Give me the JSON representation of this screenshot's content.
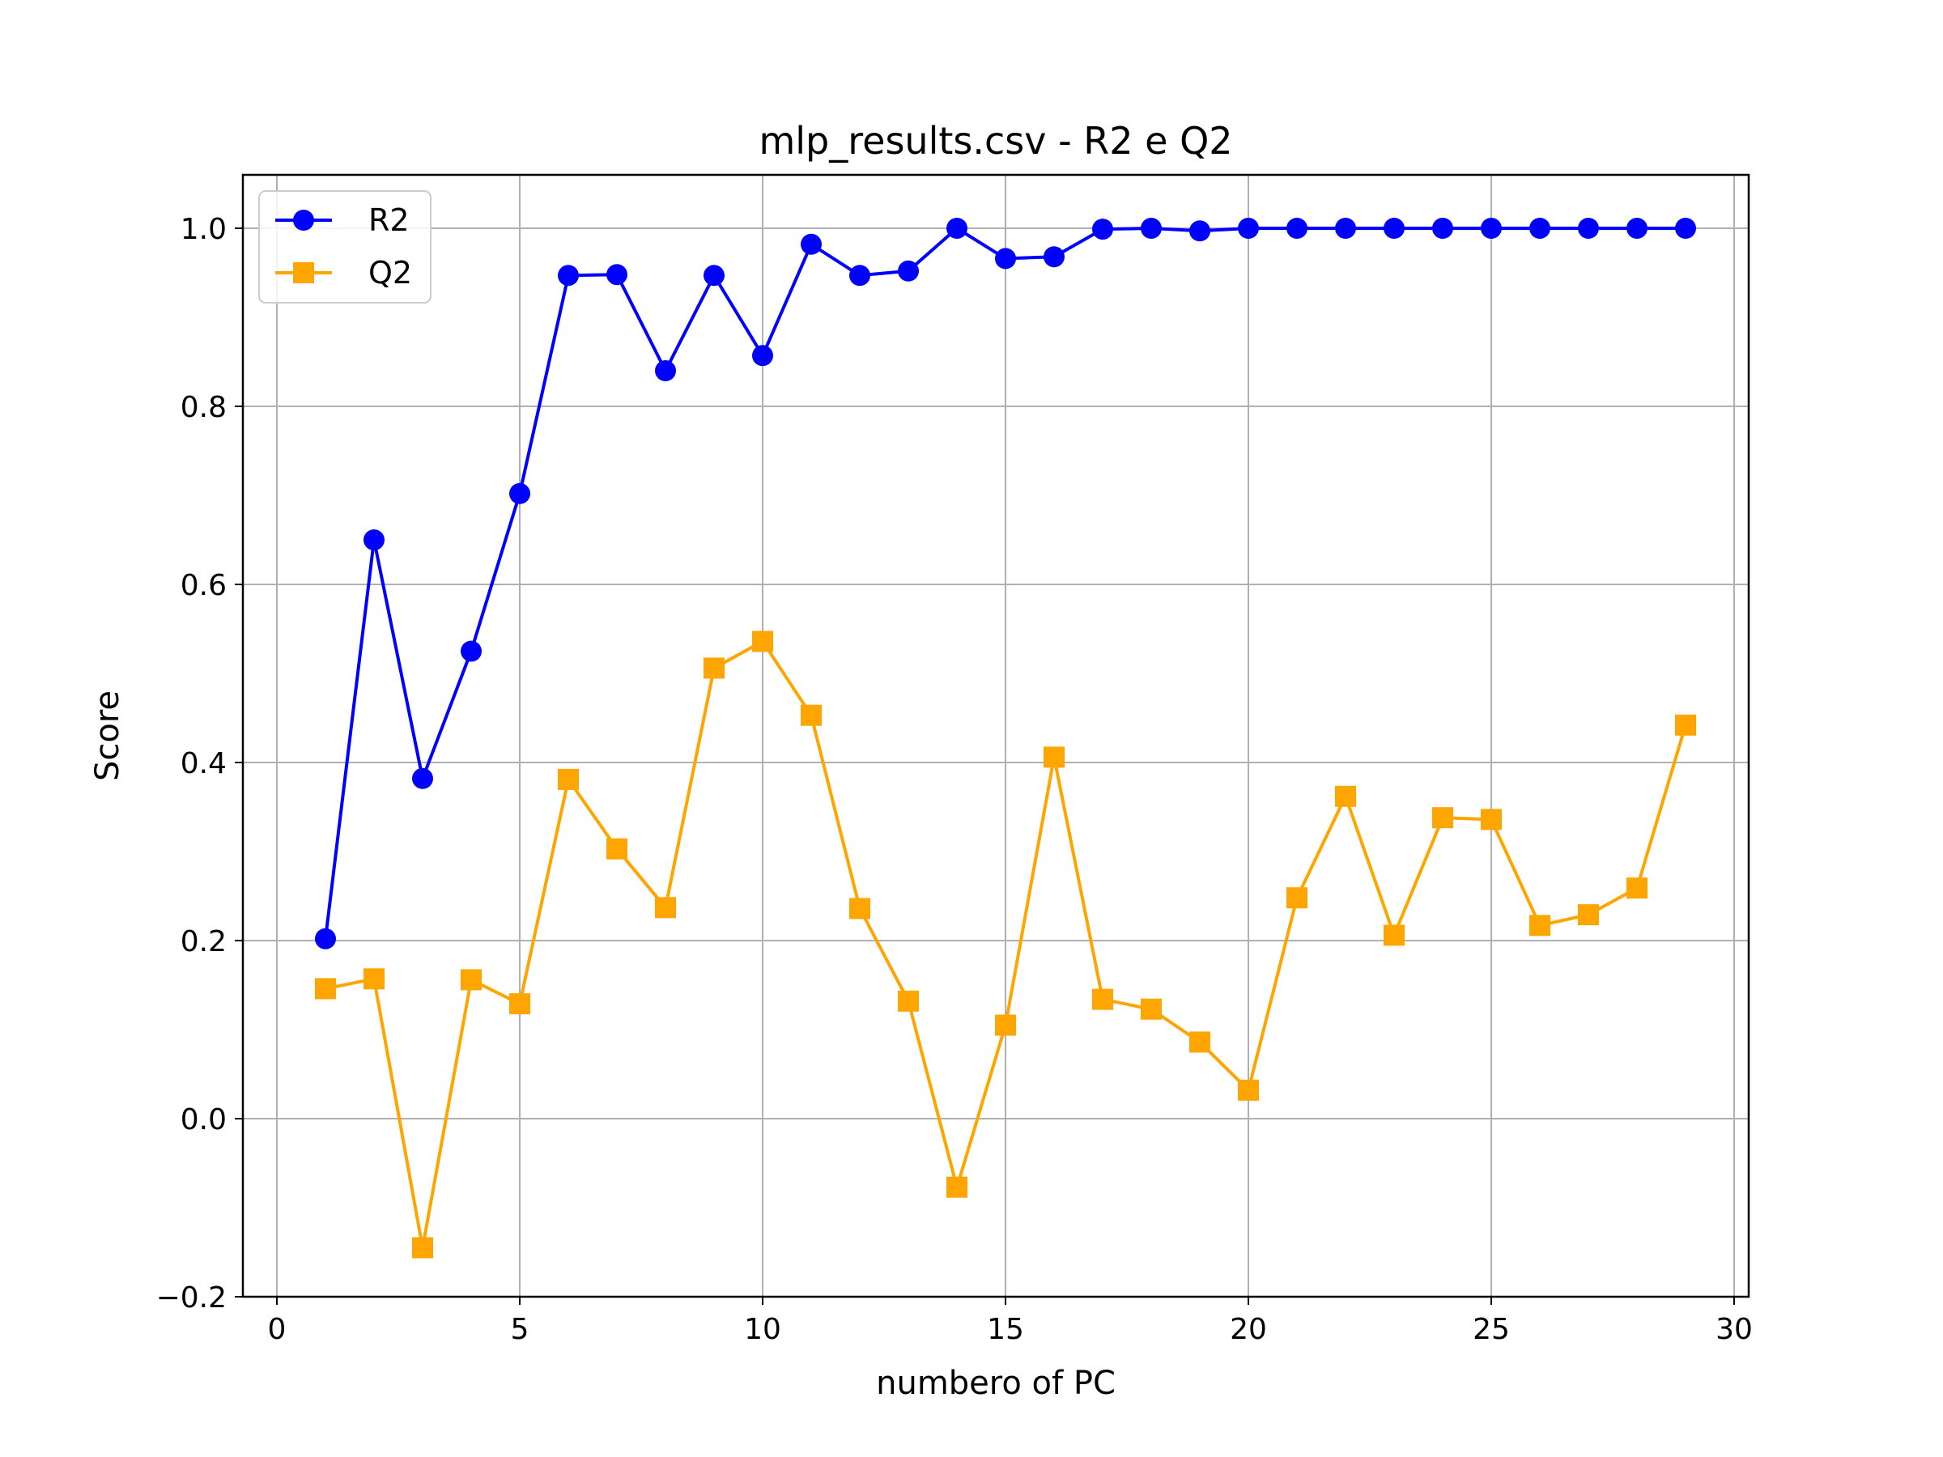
{
  "chart_data": {
    "type": "line",
    "title": "mlp_results.csv - R2 e Q2",
    "xlabel": "numbero of PC",
    "ylabel": "Score",
    "xlim": [
      -0.7,
      30.3
    ],
    "ylim": [
      -0.2,
      1.06
    ],
    "xticks": [
      0,
      5,
      10,
      15,
      20,
      25,
      30
    ],
    "yticks": [
      -0.2,
      0.0,
      0.2,
      0.4,
      0.6,
      0.8,
      1.0
    ],
    "xtick_labels": [
      "0",
      "5",
      "10",
      "15",
      "20",
      "25",
      "30"
    ],
    "ytick_labels": [
      "−0.2",
      "0.0",
      "0.2",
      "0.4",
      "0.6",
      "0.8",
      "1.0"
    ],
    "grid": true,
    "legend_position": "top-left",
    "x": [
      1,
      2,
      3,
      4,
      5,
      6,
      7,
      8,
      9,
      10,
      11,
      12,
      13,
      14,
      15,
      16,
      17,
      18,
      19,
      20,
      21,
      22,
      23,
      24,
      25,
      26,
      27,
      28,
      29
    ],
    "series": [
      {
        "name": "R2",
        "color": "#0000ff",
        "marker": "circle",
        "values": [
          0.202,
          0.65,
          0.382,
          0.525,
          0.702,
          0.947,
          0.948,
          0.84,
          0.947,
          0.857,
          0.982,
          0.947,
          0.952,
          1.0,
          0.966,
          0.968,
          0.999,
          1.0,
          0.997,
          1.0,
          1.0,
          1.0,
          1.0,
          1.0,
          1.0,
          1.0,
          1.0,
          1.0,
          1.0
        ]
      },
      {
        "name": "Q2",
        "color": "#ffa500",
        "marker": "square",
        "values": [
          0.146,
          0.157,
          -0.145,
          0.156,
          0.129,
          0.381,
          0.303,
          0.237,
          0.506,
          0.536,
          0.453,
          0.236,
          0.132,
          -0.077,
          0.105,
          0.406,
          0.134,
          0.123,
          0.086,
          0.032,
          0.248,
          0.362,
          0.206,
          0.338,
          0.336,
          0.217,
          0.229,
          0.259,
          0.442
        ]
      }
    ]
  }
}
